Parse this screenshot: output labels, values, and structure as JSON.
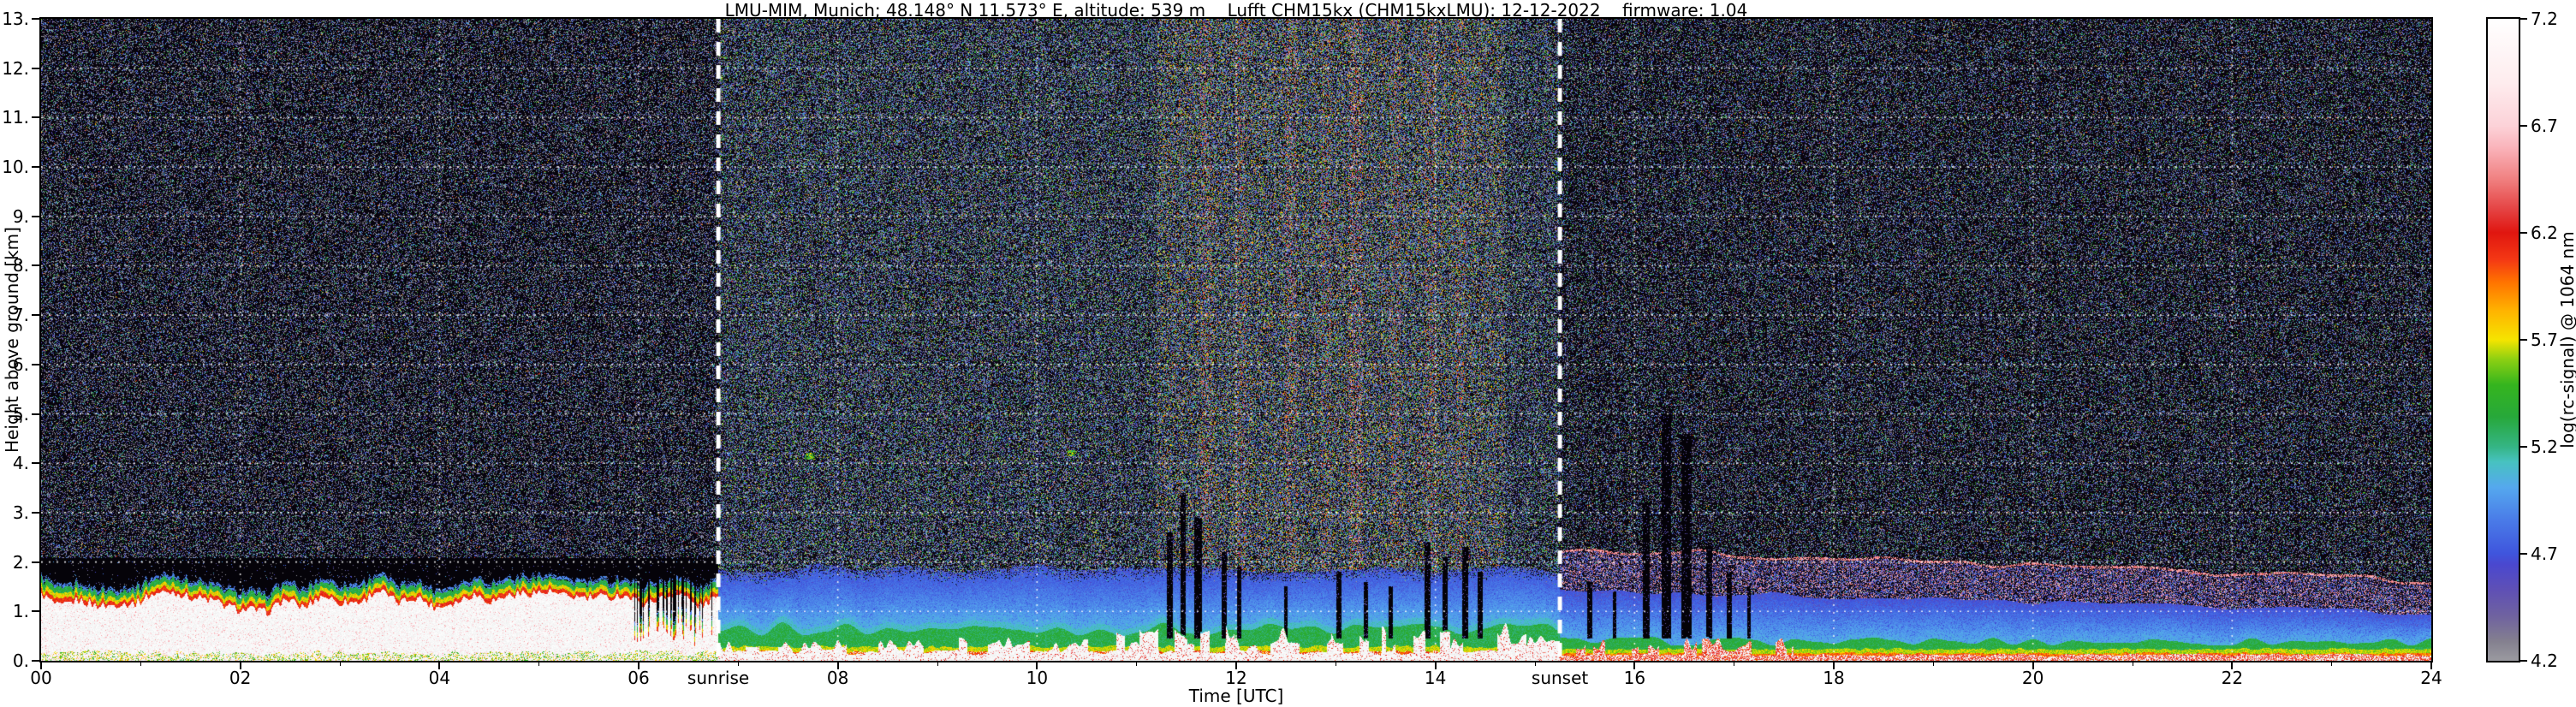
{
  "chart_data": {
    "type": "heatmap",
    "title": "LMU-MIM, Munich; 48.148° N 11.573° E, altitude: 539 m    Lufft CHM15kx (CHM15kxLMU): 12-12-2022    firmware: 1.04",
    "xlabel": "Time [UTC]",
    "ylabel": "Height above ground [km]",
    "xlim": [
      0,
      24
    ],
    "ylim": [
      0,
      13
    ],
    "x_ticks": {
      "values": [
        0,
        2,
        4,
        6,
        8,
        10,
        12,
        14,
        16,
        18,
        20,
        22,
        24
      ],
      "labels": [
        "00",
        "02",
        "04",
        "06",
        "08",
        "10",
        "12",
        "14",
        "16",
        "18",
        "20",
        "22",
        "24"
      ]
    },
    "y_ticks": {
      "values": [
        0,
        1,
        2,
        3,
        4,
        5,
        6,
        7,
        8,
        9,
        10,
        11,
        12,
        13
      ],
      "labels": [
        "0.",
        "1.",
        "2.",
        "3.",
        "4.",
        "5.",
        "6.",
        "7.",
        "8.",
        "9.",
        "10.",
        "11.",
        "12.",
        "13."
      ]
    },
    "colorbar": {
      "label": "log(rc-signal) @ 1064 nm",
      "range": [
        4.2,
        7.2
      ],
      "ticks": [
        "7.2",
        "6.7",
        "6.2",
        "5.7",
        "5.2",
        "4.7",
        "4.2"
      ],
      "tick_values": [
        7.2,
        6.7,
        6.2,
        5.7,
        5.2,
        4.7,
        4.2
      ],
      "stops": [
        {
          "t": 0.0,
          "c": "#9a9aa0"
        },
        {
          "t": 0.03,
          "c": "#84808f"
        },
        {
          "t": 0.07,
          "c": "#6f62a0"
        },
        {
          "t": 0.11,
          "c": "#5f50b5"
        },
        {
          "t": 0.15,
          "c": "#4a48cf"
        },
        {
          "t": 0.1667,
          "c": "#3f55dd"
        },
        {
          "t": 0.22,
          "c": "#4a7ce8"
        },
        {
          "t": 0.27,
          "c": "#55a8ee"
        },
        {
          "t": 0.31,
          "c": "#47c2c0"
        },
        {
          "t": 0.3333,
          "c": "#35b585"
        },
        {
          "t": 0.38,
          "c": "#27a83a"
        },
        {
          "t": 0.43,
          "c": "#35b51e"
        },
        {
          "t": 0.47,
          "c": "#8ed012"
        },
        {
          "t": 0.5,
          "c": "#f5e400"
        },
        {
          "t": 0.545,
          "c": "#ffb300"
        },
        {
          "t": 0.59,
          "c": "#ff7300"
        },
        {
          "t": 0.625,
          "c": "#f43814"
        },
        {
          "t": 0.6667,
          "c": "#e01610"
        },
        {
          "t": 0.7,
          "c": "#e43f3f"
        },
        {
          "t": 0.75,
          "c": "#f08080"
        },
        {
          "t": 0.8,
          "c": "#fab4bb"
        },
        {
          "t": 0.8333,
          "c": "#fcd2d8"
        },
        {
          "t": 0.9,
          "c": "#feecee"
        },
        {
          "t": 1.0,
          "c": "#ffffff"
        }
      ]
    },
    "annotations": [
      {
        "label": "sunrise",
        "x": 6.8
      },
      {
        "label": "sunset",
        "x": 15.25
      }
    ],
    "scene": {
      "sunrise_utc": 6.8,
      "sunset_utc": 15.25,
      "night_layer": {
        "description": "optically thick aerosol/cloud layer, saturated white core with red/yellow/green/blue fringe on top",
        "top_km_mean": 1.25,
        "top_km_range": [
          0.9,
          1.55
        ],
        "clear_above_km": 2.05
      },
      "day": {
        "description": "blue convective boundary-layer signal up to ~2 km, green/yellow/red/white strong signal near surface, shallow cumulus 11-15 UTC",
        "boundary_layer_top_km": 1.9,
        "green_top_km": 0.6,
        "surface_strong_km": 0.2
      },
      "evening": {
        "description": "magenta/pink near-range noise band slowly descending after sunset, blue residual layer, green/yellow surface layer",
        "pink_top_start": 2.3,
        "pink_top_end": 1.6,
        "blue_top_start": 1.45,
        "blue_top_end": 0.95,
        "green_top_km": 0.4
      },
      "black_streaks": [
        {
          "t": 11.33,
          "w": 0.06,
          "top": 2.6
        },
        {
          "t": 11.47,
          "w": 0.05,
          "top": 3.4
        },
        {
          "t": 11.62,
          "w": 0.08,
          "top": 2.9
        },
        {
          "t": 11.88,
          "w": 0.05,
          "top": 2.2
        },
        {
          "t": 12.03,
          "w": 0.04,
          "top": 1.9
        },
        {
          "t": 12.5,
          "w": 0.04,
          "top": 1.5
        },
        {
          "t": 13.03,
          "w": 0.05,
          "top": 1.8
        },
        {
          "t": 13.3,
          "w": 0.04,
          "top": 1.6
        },
        {
          "t": 13.55,
          "w": 0.04,
          "top": 1.5
        },
        {
          "t": 13.92,
          "w": 0.06,
          "top": 2.4
        },
        {
          "t": 14.1,
          "w": 0.05,
          "top": 2.1
        },
        {
          "t": 14.3,
          "w": 0.06,
          "top": 2.3
        },
        {
          "t": 14.45,
          "w": 0.05,
          "top": 1.8
        },
        {
          "t": 15.55,
          "w": 0.05,
          "top": 1.6
        },
        {
          "t": 15.8,
          "w": 0.04,
          "top": 1.4
        },
        {
          "t": 16.12,
          "w": 0.07,
          "top": 3.2
        },
        {
          "t": 16.32,
          "w": 0.09,
          "top": 5.0
        },
        {
          "t": 16.52,
          "w": 0.1,
          "top": 4.6
        },
        {
          "t": 16.75,
          "w": 0.06,
          "top": 2.4
        },
        {
          "t": 16.95,
          "w": 0.05,
          "top": 1.8
        },
        {
          "t": 17.15,
          "w": 0.04,
          "top": 1.5
        }
      ],
      "bright_columns": [
        {
          "t": 11.7,
          "w": 0.12,
          "boost": 1.6
        },
        {
          "t": 12.05,
          "w": 0.1,
          "boost": 1.5
        },
        {
          "t": 12.55,
          "w": 0.12,
          "boost": 1.7
        },
        {
          "t": 12.9,
          "w": 0.1,
          "boost": 1.45
        },
        {
          "t": 13.2,
          "w": 0.14,
          "boost": 1.8
        },
        {
          "t": 13.6,
          "w": 0.1,
          "boost": 1.5
        },
        {
          "t": 13.95,
          "w": 0.12,
          "boost": 1.6
        },
        {
          "t": 14.25,
          "w": 0.1,
          "boost": 1.45
        }
      ],
      "mid_level_echoes": [
        {
          "t": 7.72,
          "h": 4.15,
          "w": 0.1,
          "dh": 0.14
        },
        {
          "t": 10.35,
          "h": 4.2,
          "w": 0.09,
          "dh": 0.12
        }
      ]
    }
  }
}
